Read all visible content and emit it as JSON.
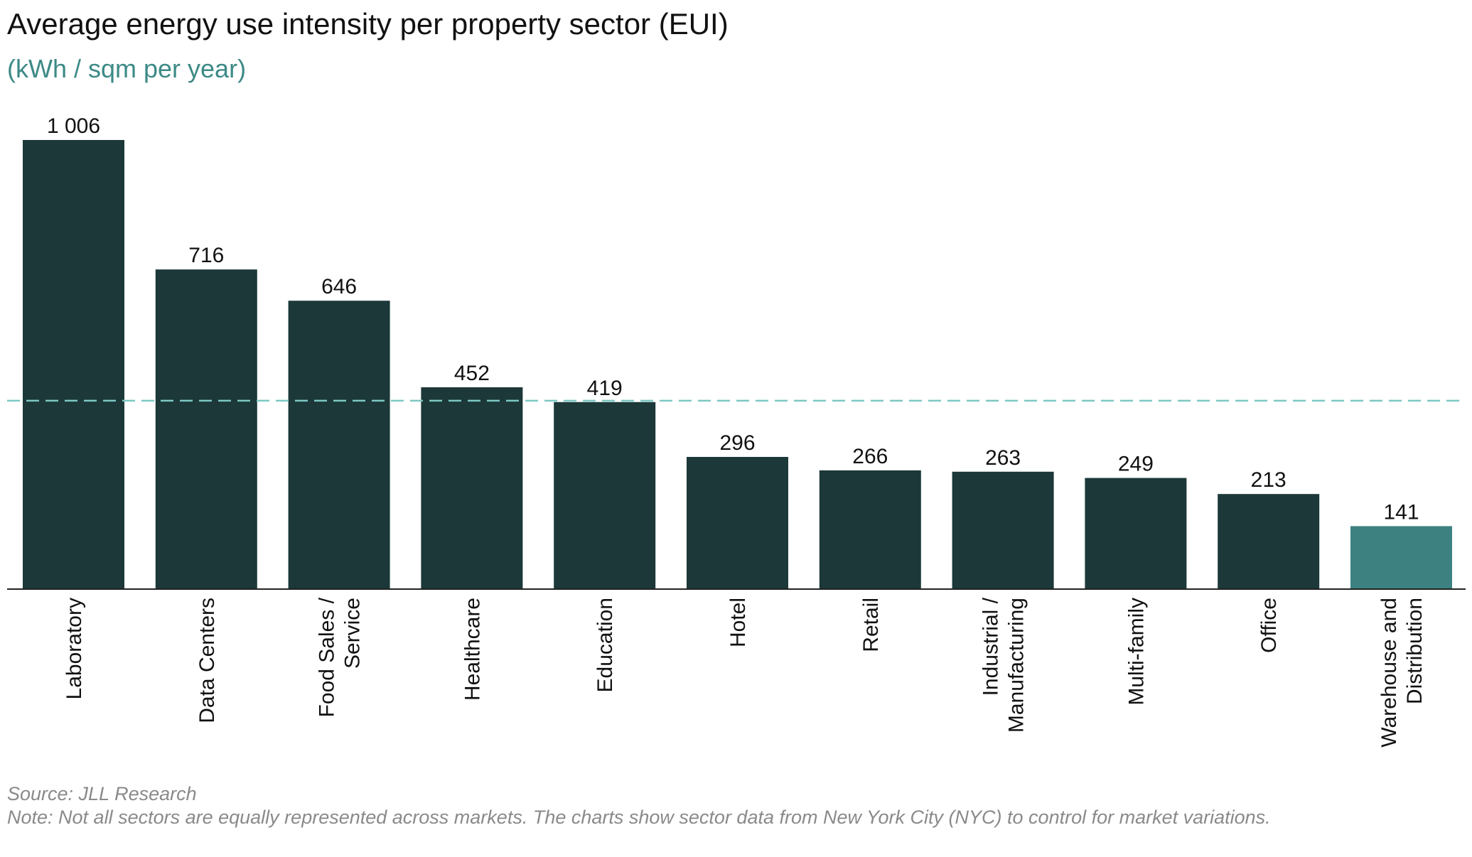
{
  "chart_data": {
    "type": "bar",
    "title": "Average energy use intensity per property sector (EUI)",
    "subtitle": "(kWh / sqm per year)",
    "categories": [
      [
        "Laboratory"
      ],
      [
        "Data Centers"
      ],
      [
        "Food Sales /",
        "Service"
      ],
      [
        "Healthcare"
      ],
      [
        "Education"
      ],
      [
        "Hotel"
      ],
      [
        "Retail"
      ],
      [
        "Industrial /",
        "Manufacturing"
      ],
      [
        "Multi-family"
      ],
      [
        "Office"
      ],
      [
        "Warehouse and",
        "Distribution"
      ]
    ],
    "values": [
      1006,
      716,
      646,
      452,
      419,
      296,
      266,
      263,
      249,
      213,
      141
    ],
    "value_labels": [
      "1 006",
      "716",
      "646",
      "452",
      "419",
      "296",
      "266",
      "263",
      "249",
      "213",
      "141"
    ],
    "bar_colors": [
      "#1c3838",
      "#1c3838",
      "#1c3838",
      "#1c3838",
      "#1c3838",
      "#1c3838",
      "#1c3838",
      "#1c3838",
      "#1c3838",
      "#1c3838",
      "#3d8280"
    ],
    "reference_line": {
      "value": 422,
      "color": "#7cc8c4",
      "style": "dashed"
    },
    "ylim": [
      0,
      1006
    ],
    "xlabel": "",
    "ylabel": "",
    "grid": false,
    "legend": "none"
  },
  "footer": {
    "source": "Source: JLL Research",
    "note": "Note: Not all sectors are equally represented across markets. The charts show sector data from New York City (NYC) to control for market variations."
  }
}
